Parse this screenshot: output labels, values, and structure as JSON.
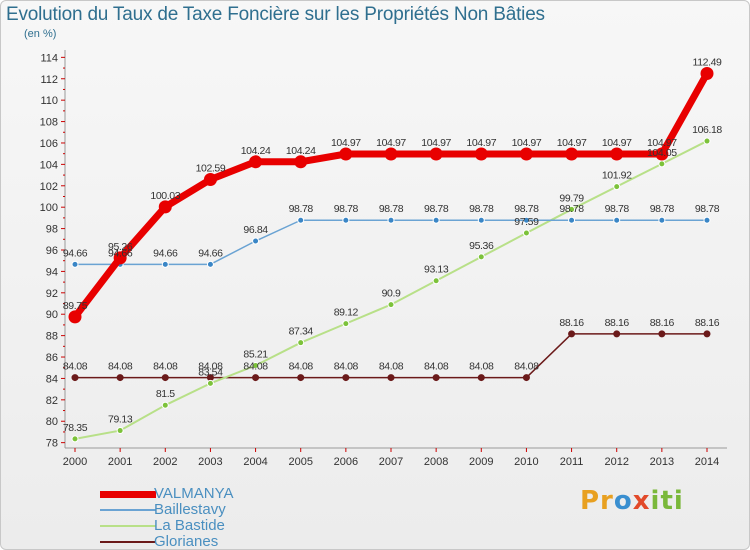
{
  "chart_data": {
    "type": "line",
    "title": "Evolution du Taux de Taxe Foncière sur les Propriétés Non Bâties",
    "subtitle": "(en %)",
    "x": [
      "2000",
      "2001",
      "2002",
      "2003",
      "2004",
      "2005",
      "2006",
      "2007",
      "2008",
      "2009",
      "2010",
      "2011",
      "2012",
      "2013",
      "2014"
    ],
    "ylim": [
      77.5,
      114.5
    ],
    "yticks": [
      78,
      80,
      82,
      84,
      86,
      88,
      90,
      92,
      94,
      96,
      98,
      100,
      102,
      104,
      106,
      108,
      110,
      112,
      114
    ],
    "grid": false,
    "legend_position": "bottom-left",
    "series": [
      {
        "name": "VALMANYA",
        "color": "#e80000",
        "values": [
          89.75,
          95.26,
          100.03,
          102.59,
          104.24,
          104.24,
          104.97,
          104.97,
          104.97,
          104.97,
          104.97,
          104.97,
          104.97,
          104.97,
          112.49
        ],
        "labels": [
          "89.75",
          "95.26",
          "100.03",
          "102.59",
          "104.24",
          "104.24",
          "104.97",
          "104.97",
          "104.97",
          "104.97",
          "104.97",
          "104.97",
          "104.97",
          "104.97",
          "112.49"
        ]
      },
      {
        "name": "Baillestavy",
        "color": "#5a9bd0",
        "values": [
          94.66,
          94.66,
          94.66,
          94.66,
          96.84,
          98.78,
          98.78,
          98.78,
          98.78,
          98.78,
          98.78,
          98.78,
          98.78,
          98.78,
          98.78
        ],
        "labels": [
          "94.66",
          "94.66",
          "94.66",
          "94.66",
          "96.84",
          "98.78",
          "98.78",
          "98.78",
          "98.78",
          "98.78",
          "98.78",
          "98.78",
          "98.78",
          "98.78",
          "98.78"
        ]
      },
      {
        "name": "La Bastide",
        "color": "#a8dc70",
        "values": [
          78.35,
          79.13,
          81.5,
          83.54,
          85.21,
          87.34,
          89.12,
          90.9,
          93.13,
          95.36,
          97.59,
          99.79,
          101.92,
          104.05,
          106.18
        ],
        "labels": [
          "78.35",
          "79.13",
          "81.5",
          "83.54",
          "85.21",
          "87.34",
          "89.12",
          "90.9",
          "93.13",
          "95.36",
          "97.59",
          "99.79",
          "101.92",
          "104.05",
          "106.18"
        ]
      },
      {
        "name": "Glorianes",
        "color": "#6b1a1a",
        "values": [
          84.08,
          84.08,
          84.08,
          84.08,
          84.08,
          84.08,
          84.08,
          84.08,
          84.08,
          84.08,
          84.08,
          88.16,
          88.16,
          88.16,
          88.16
        ],
        "labels": [
          "84.08",
          "84.08",
          "84.08",
          "84.08",
          "84.08",
          "84.08",
          "84.08",
          "84.08",
          "84.08",
          "84.08",
          "84.08",
          "88.16",
          "88.16",
          "88.16",
          "88.16"
        ]
      }
    ]
  },
  "brand": {
    "p1": "Pr",
    "p2": "o",
    "p3": "x",
    "p4": "iti"
  }
}
